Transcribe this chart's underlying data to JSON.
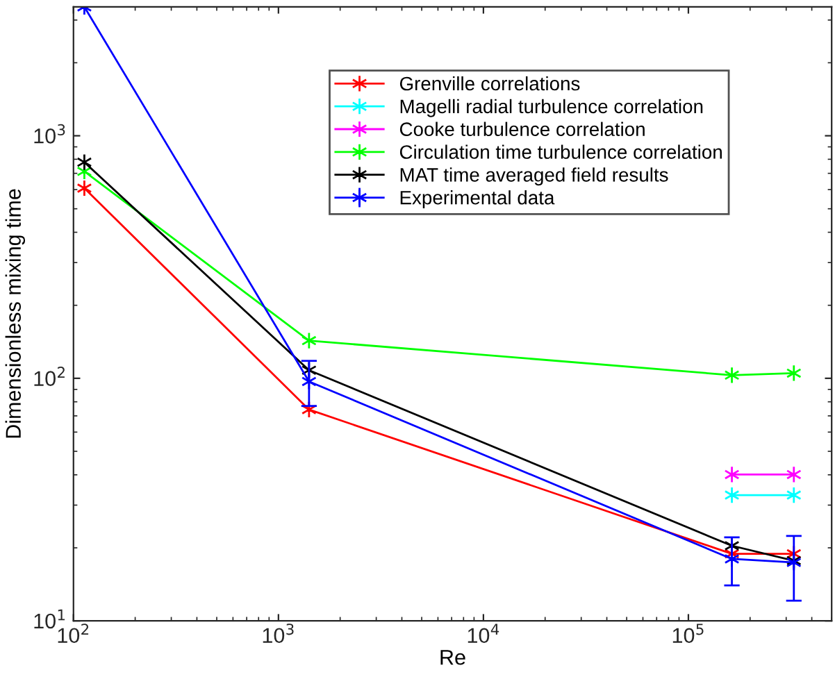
{
  "chart_data": {
    "type": "line",
    "xlabel": "Re",
    "ylabel": "Dimensionless mixing time",
    "x": [
      113,
      1410,
      163000,
      327000
    ],
    "log": "xy",
    "xlim": [
      100,
      500000
    ],
    "ylim": [
      10,
      3400
    ],
    "xticks": [
      {
        "value": 100,
        "label": "10$^{2}$"
      },
      {
        "value": 1000,
        "label": "10$^{3}$"
      },
      {
        "value": 10000,
        "label": "10$^{4}$"
      },
      {
        "value": 100000,
        "label": "10$^{5}$"
      }
    ],
    "yticks": [
      {
        "value": 10,
        "label": "10$^{1}$"
      },
      {
        "value": 100,
        "label": "10$^{2}$"
      },
      {
        "value": 1000,
        "label": "10$^{3}$"
      }
    ],
    "grid": false,
    "legend": "top right",
    "marker": "cross",
    "series": [
      {
        "name": "Grenville correlations",
        "color": "#ff0000",
        "values": [
          608,
          74.3,
          18.9,
          18.9
        ]
      },
      {
        "name": "Magelli radial turbulence correlation",
        "color": "#00ffff",
        "values": [
          null,
          null,
          33.0,
          33.0
        ]
      },
      {
        "name": "Cooke turbulence correlation",
        "color": "#ff00ff",
        "values": [
          null,
          null,
          40.1,
          40.1
        ]
      },
      {
        "name": "Circulation time turbulence correlation",
        "color": "#00ff00",
        "values": [
          713,
          143,
          103,
          105
        ]
      },
      {
        "name": "MAT time averaged field results",
        "color": "#000000",
        "values": [
          778,
          108,
          20.4,
          17.7
        ]
      },
      {
        "name": "Experimental data",
        "color": "#0000ff",
        "values": [
          3400,
          97,
          18.0,
          17.4
        ],
        "errors": [
          null,
          [
            76.9,
            118
          ],
          [
            14.0,
            22.1
          ],
          [
            12.1,
            22.4
          ]
        ]
      }
    ]
  }
}
